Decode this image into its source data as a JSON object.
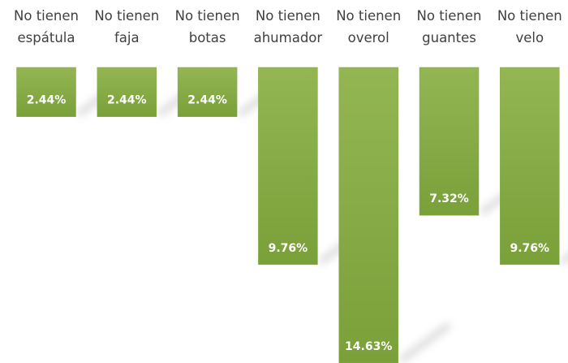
{
  "chart_data": {
    "type": "bar",
    "categories": [
      "No tienen espátula",
      "No tienen faja",
      "No tienen botas",
      "No tienen ahumador",
      "No tienen overol",
      "No tienen guantes",
      "No tienen velo"
    ],
    "values": [
      2.44,
      2.44,
      2.44,
      9.76,
      14.63,
      7.32,
      9.76
    ],
    "value_labels": [
      "2.44%",
      "2.44%",
      "2.44%",
      "9.76%",
      "14.63%",
      "7.32%",
      "9.76%"
    ],
    "color": "#86aa45"
  }
}
